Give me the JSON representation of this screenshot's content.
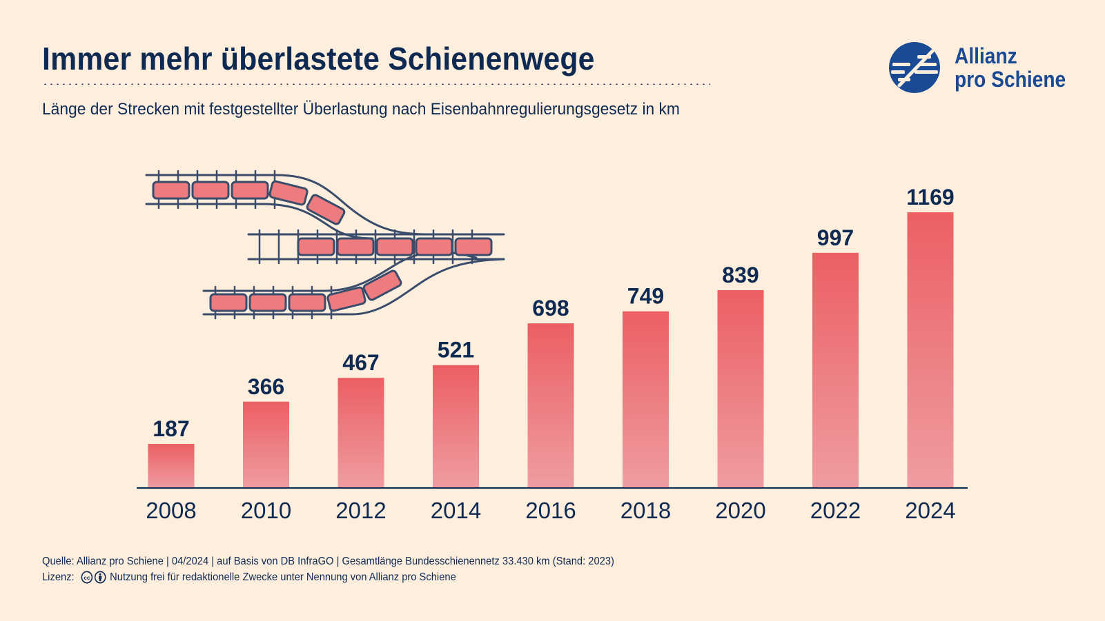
{
  "header": {
    "title": "Immer mehr überlastete Schienenwege",
    "subtitle": "Länge der Strecken mit festgestellter Überlastung nach Eisenbahnregulierungsgesetz in km"
  },
  "logo": {
    "line1": "Allianz",
    "line2": "pro Schiene"
  },
  "footer": {
    "source": "Quelle: Allianz pro Schiene | 04/2024 | auf Basis von DB InfraGO | Gesamtlänge Bundesschienennetz 33.430 km (Stand: 2023)",
    "license_label": "Lizenz:",
    "license_text": "Nutzung frei für redaktionelle Zwecke unter Nennung von Allianz pro Schiene",
    "license_icons": [
      "cc-icon",
      "by-person-icon"
    ]
  },
  "colors": {
    "bar_top": "#ec5f63",
    "bar_bottom": "#ee9da2",
    "text": "#0f2a52",
    "brand": "#1a4a93",
    "background": "#fdeedd"
  },
  "chart_data": {
    "type": "bar",
    "categories": [
      "2008",
      "2010",
      "2012",
      "2014",
      "2016",
      "2018",
      "2020",
      "2022",
      "2024"
    ],
    "values": [
      187,
      366,
      467,
      521,
      698,
      749,
      839,
      997,
      1169
    ],
    "title": "Immer mehr überlastete Schienenwege",
    "xlabel": "",
    "ylabel": "",
    "ylim": [
      0,
      1169
    ],
    "grid": false,
    "legend": "none",
    "data_labels": true
  }
}
